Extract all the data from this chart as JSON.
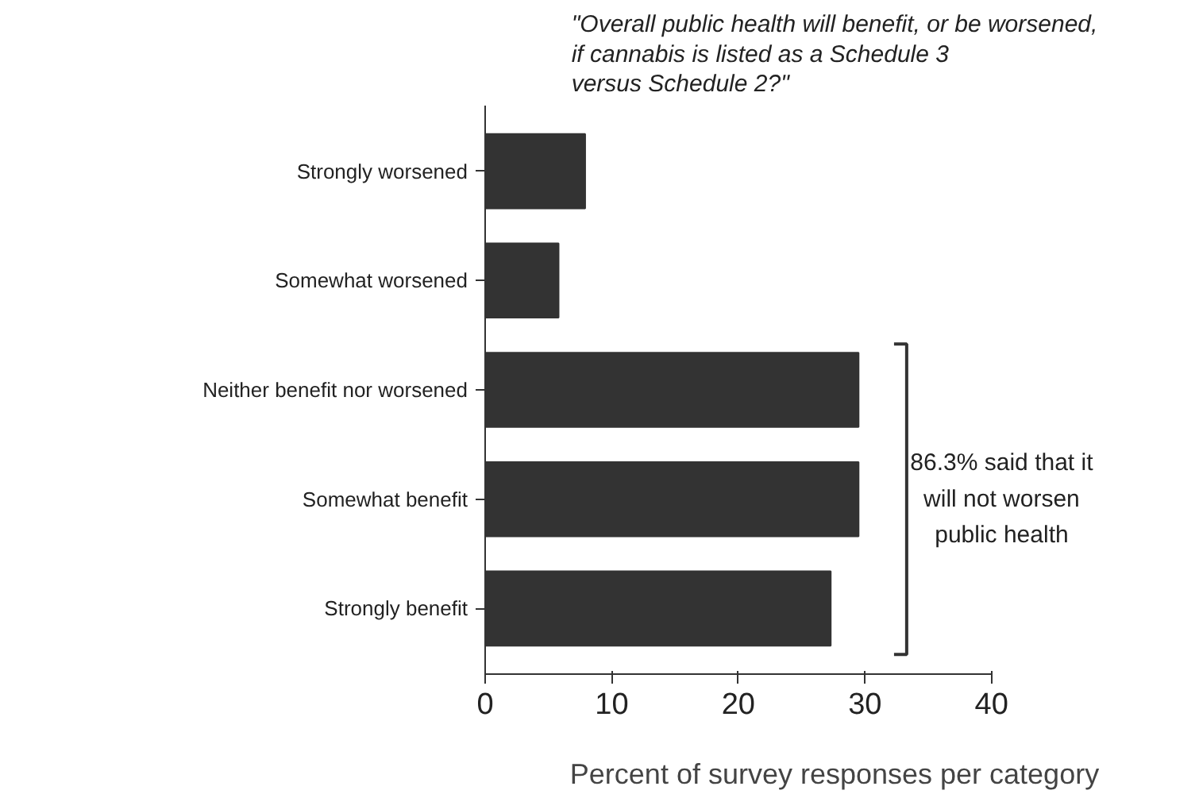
{
  "chart_data": {
    "type": "bar",
    "orientation": "horizontal",
    "title": "\"Overall public health will benefit, or be worsened,\nif cannabis is listed as a Schedule 3\nversus Schedule 2?\"",
    "categories": [
      "Strongly worsened",
      "Somewhat worsened",
      "Neither benefit nor worsened",
      "Somewhat benefit",
      "Strongly benefit"
    ],
    "values": [
      7.9,
      5.8,
      29.5,
      29.5,
      27.3
    ],
    "color": "#333333",
    "xlim": [
      0,
      40
    ],
    "xticks": [
      0,
      10,
      20,
      30,
      40
    ],
    "xlabel": "Percent of survey responses per category",
    "grid": false,
    "annotations": [
      "86.3% said that it\nwill not worsen\npublic health"
    ]
  }
}
